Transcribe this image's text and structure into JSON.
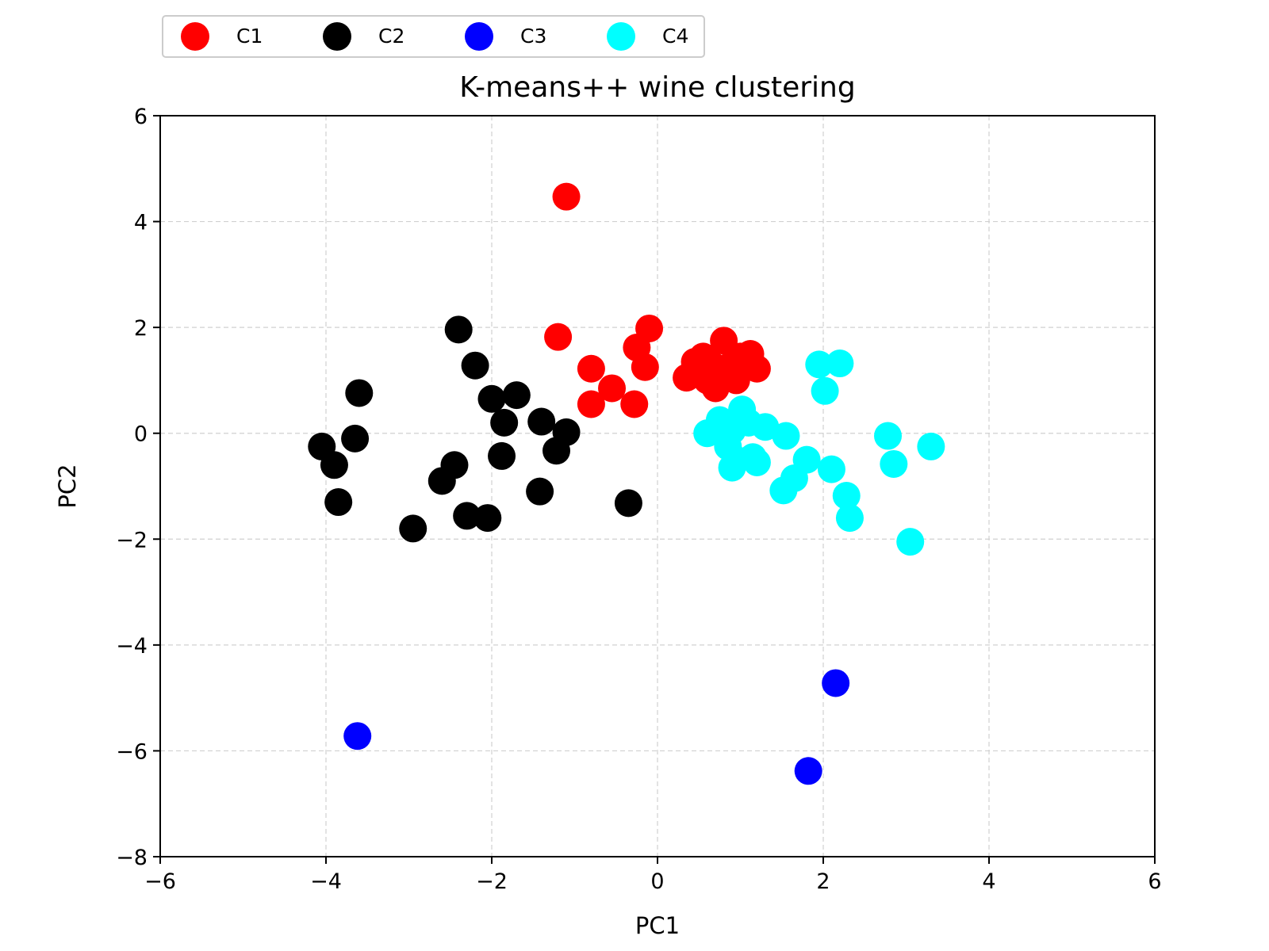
{
  "chart_data": {
    "type": "scatter",
    "title": "K-means++ wine clustering",
    "xlabel": "PC1",
    "ylabel": "PC2",
    "xlim": [
      -6,
      6
    ],
    "ylim": [
      -8,
      6
    ],
    "xticks": [
      -6,
      -4,
      -2,
      0,
      2,
      4,
      6
    ],
    "yticks": [
      -8,
      -6,
      -4,
      -2,
      0,
      2,
      4,
      6
    ],
    "xtick_labels": [
      "−6",
      "−4",
      "−2",
      "0",
      "2",
      "4",
      "6"
    ],
    "ytick_labels": [
      "−8",
      "−6",
      "−4",
      "−2",
      "0",
      "2",
      "4",
      "6"
    ],
    "grid": true,
    "legend_position": "top-left, above plot",
    "series": [
      {
        "name": "C1",
        "color": "#ff0000",
        "x": [
          -1.1,
          -1.2,
          -0.1,
          -0.25,
          -0.15,
          -0.8,
          -0.55,
          -0.8,
          -0.28,
          0.35,
          0.45,
          0.55,
          0.6,
          0.65,
          0.7,
          0.8,
          0.85,
          0.95,
          1.0,
          1.05,
          1.12,
          1.2
        ],
        "y": [
          4.47,
          1.82,
          1.98,
          1.62,
          1.25,
          1.22,
          0.85,
          0.55,
          0.55,
          1.05,
          1.35,
          1.45,
          1.0,
          1.3,
          0.85,
          1.75,
          1.25,
          1.0,
          1.45,
          1.35,
          1.5,
          1.22
        ]
      },
      {
        "name": "C2",
        "color": "#000000",
        "x": [
          -2.4,
          -2.2,
          -3.6,
          -4.05,
          -3.65,
          -3.9,
          -3.85,
          -2.95,
          -2.6,
          -2.45,
          -2.3,
          -2.05,
          -2.0,
          -1.7,
          -1.85,
          -1.88,
          -1.4,
          -1.1,
          -1.22,
          -1.42,
          -0.35
        ],
        "y": [
          1.96,
          1.28,
          0.76,
          -0.25,
          -0.1,
          -0.6,
          -1.3,
          -1.8,
          -0.9,
          -0.6,
          -1.56,
          -1.6,
          0.65,
          0.72,
          0.2,
          -0.43,
          0.22,
          0.02,
          -0.33,
          -1.1,
          -1.32
        ]
      },
      {
        "name": "C3",
        "color": "#0000ff",
        "x": [
          -3.62,
          2.15,
          1.82
        ],
        "y": [
          -5.72,
          -4.72,
          -6.38
        ]
      },
      {
        "name": "C4",
        "color": "#00ffff",
        "x": [
          1.95,
          2.2,
          2.02,
          0.6,
          0.75,
          0.9,
          1.02,
          1.1,
          1.3,
          1.55,
          0.85,
          0.95,
          1.15,
          1.2,
          0.9,
          1.8,
          1.65,
          1.52,
          2.1,
          2.28,
          2.32,
          2.78,
          2.85,
          3.3,
          3.05
        ],
        "y": [
          1.3,
          1.32,
          0.8,
          0.0,
          0.25,
          0.05,
          0.45,
          0.2,
          0.12,
          -0.05,
          -0.25,
          -0.5,
          -0.45,
          -0.55,
          -0.65,
          -0.5,
          -0.85,
          -1.08,
          -0.68,
          -1.18,
          -1.6,
          -0.05,
          -0.58,
          -0.25,
          -2.05
        ]
      }
    ]
  }
}
